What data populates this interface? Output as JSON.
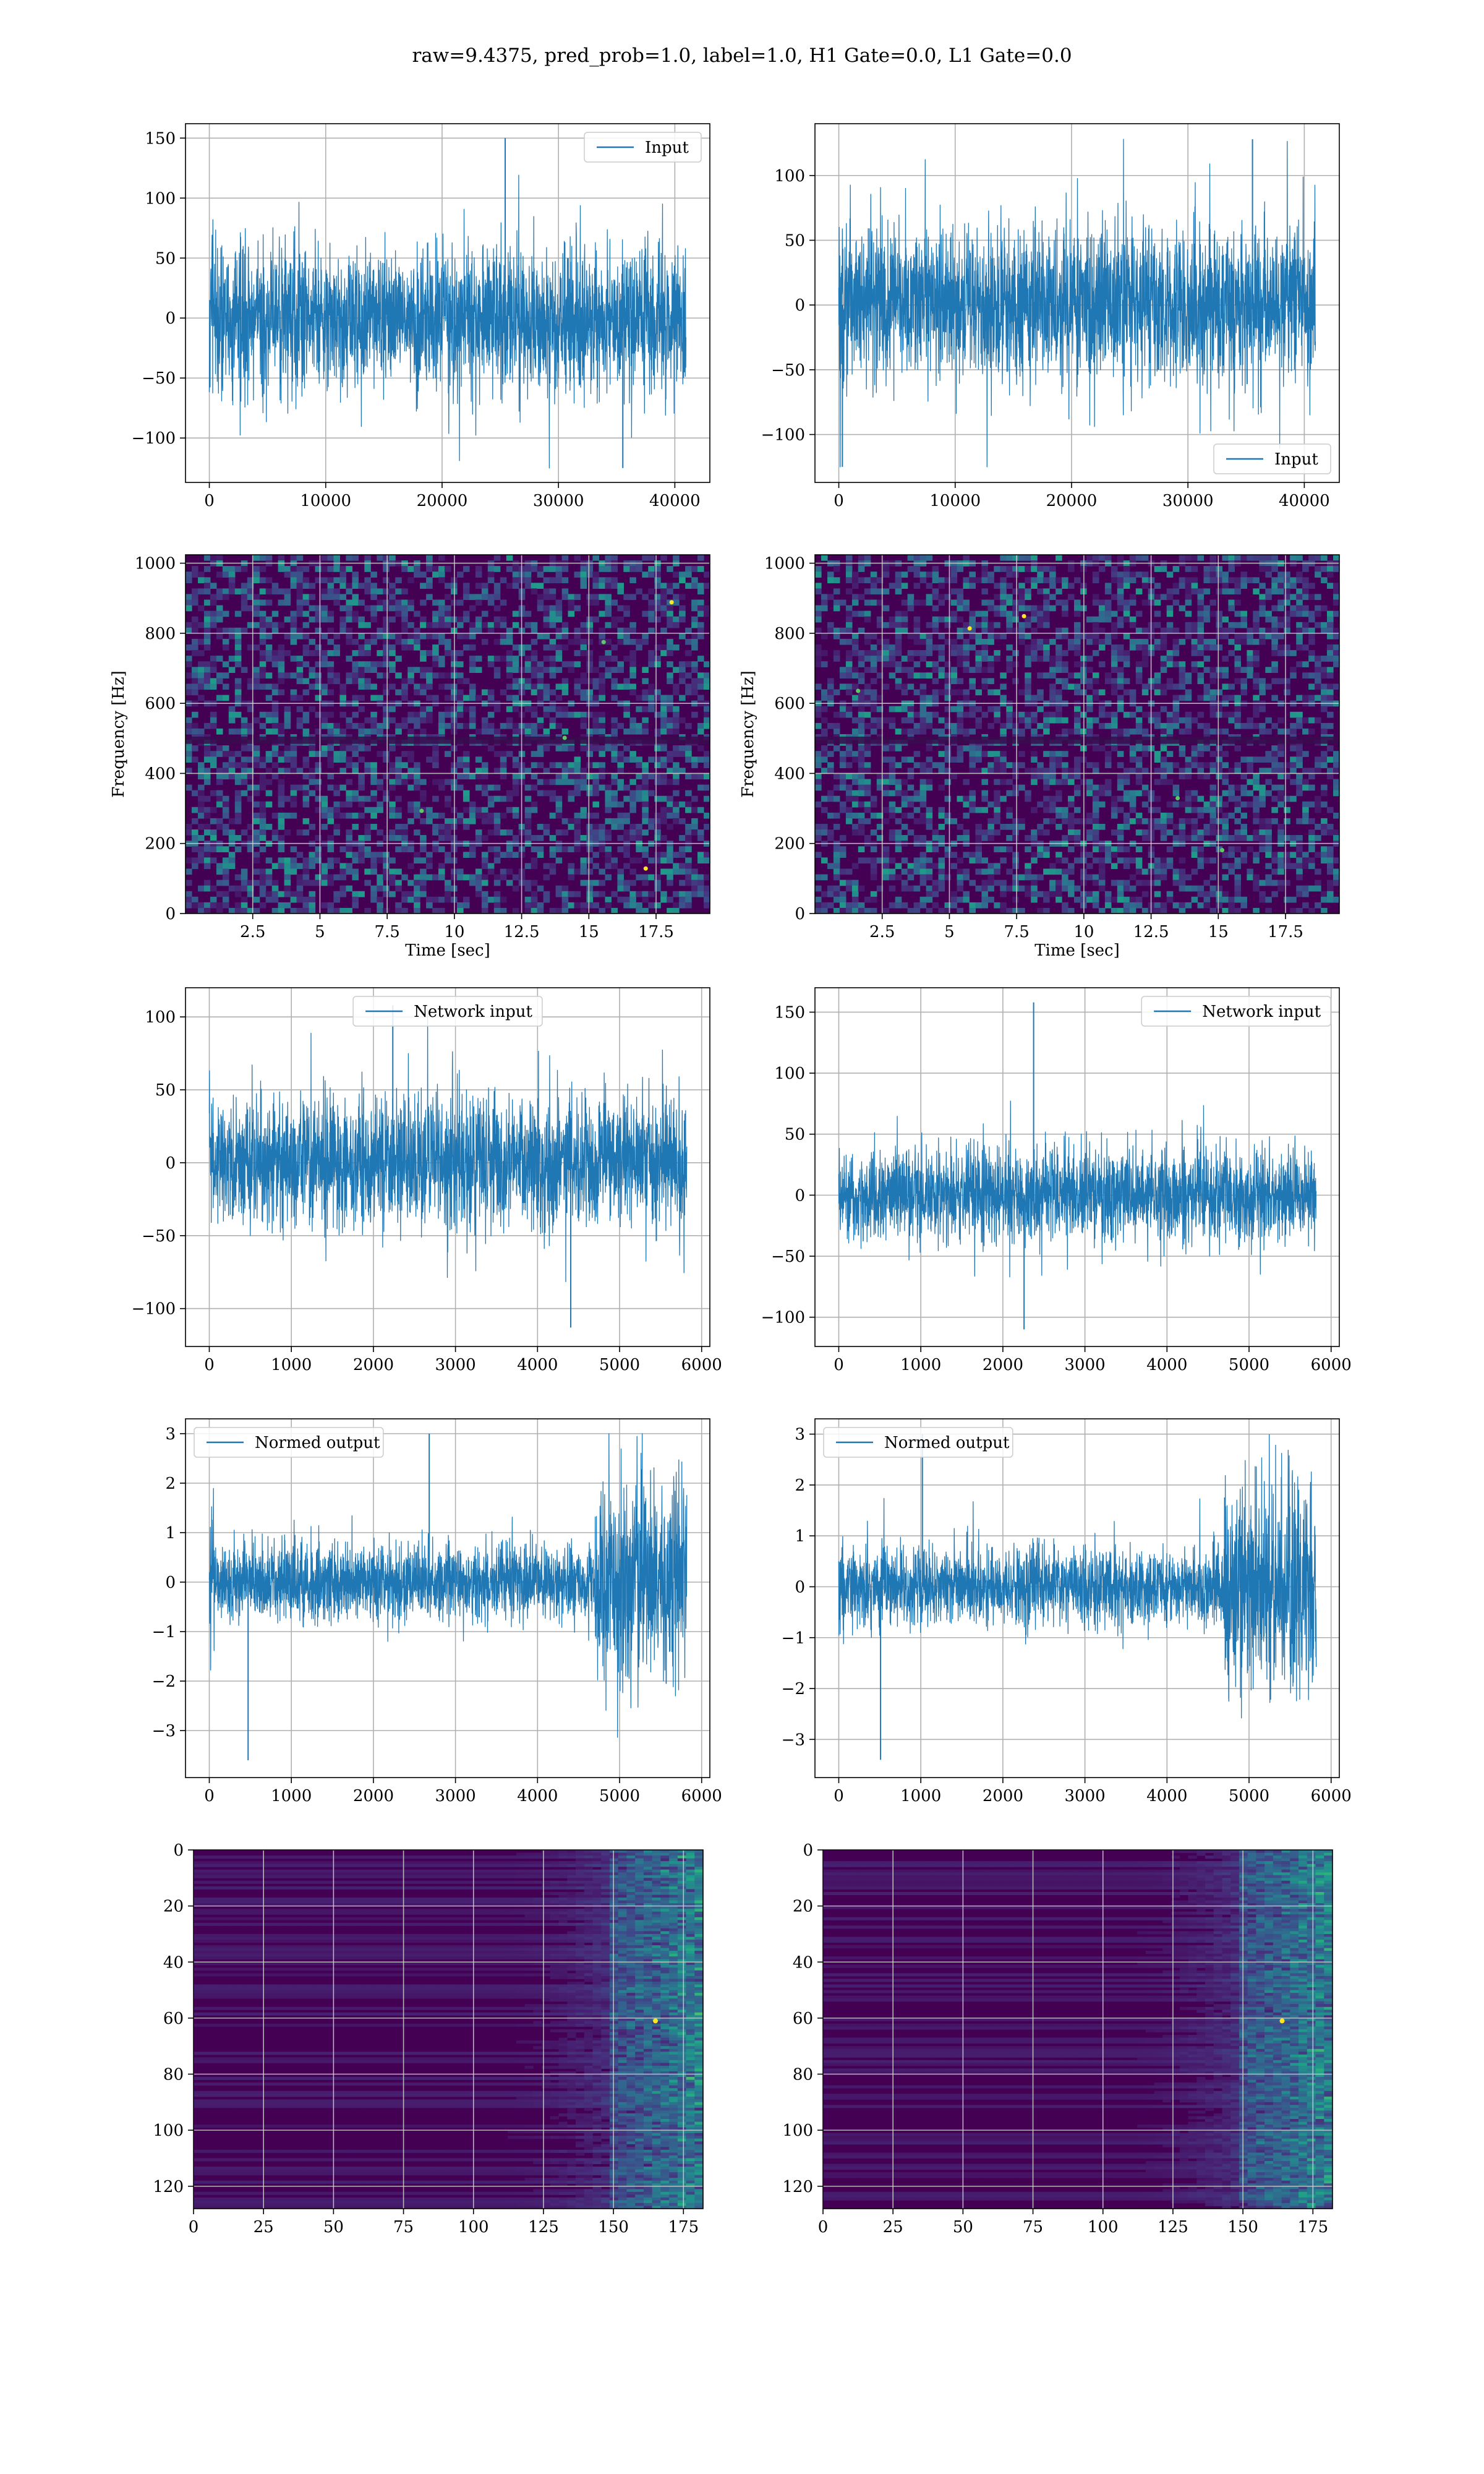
{
  "suptitle": "raw=9.4375, pred_prob=1.0, label=1.0, H1 Gate=0.0, L1 Gate=0.0",
  "colors": {
    "line": "#1f77b4",
    "grid": "#b0b0b0",
    "viridis_dark": "#440154",
    "viridis_mid": "#3b528b",
    "viridis_teal": "#21918c",
    "viridis_green": "#5ec962",
    "viridis_yellow": "#fde725"
  },
  "chart_data": [
    {
      "id": "h1-input",
      "type": "line",
      "series": [
        {
          "name": "Input",
          "n_points": 40960,
          "amplitude_range": [
            -125,
            150
          ]
        }
      ],
      "legend": "top-right",
      "xlim": [
        -2048,
        43008
      ],
      "ylim": [
        -137,
        162
      ],
      "xticks": [
        0,
        10000,
        20000,
        30000,
        40000
      ],
      "yticks": [
        -100,
        -50,
        0,
        50,
        100,
        150
      ],
      "grid": true
    },
    {
      "id": "l1-input",
      "type": "line",
      "series": [
        {
          "name": "Input",
          "n_points": 40960,
          "amplitude_range": [
            -125,
            128
          ]
        }
      ],
      "legend": "bottom-right",
      "xlim": [
        -2048,
        43008
      ],
      "ylim": [
        -137,
        140
      ],
      "xticks": [
        0,
        10000,
        20000,
        30000,
        40000
      ],
      "yticks": [
        -100,
        -50,
        0,
        50,
        100
      ],
      "grid": true
    },
    {
      "id": "h1-spectrogram",
      "type": "heatmap",
      "xlabel": "Time [sec]",
      "ylabel": "Frequency [Hz]",
      "xlim": [
        0,
        19.5
      ],
      "ylim": [
        0,
        1024
      ],
      "xticks": [
        2.5,
        5.0,
        7.5,
        10.0,
        12.5,
        15.0,
        17.5
      ],
      "yticks": [
        0,
        200,
        400,
        600,
        800,
        1000
      ],
      "colormap": "viridis",
      "grid": true
    },
    {
      "id": "l1-spectrogram",
      "type": "heatmap",
      "xlabel": "Time [sec]",
      "ylabel": "Frequency [Hz]",
      "xlim": [
        0,
        19.5
      ],
      "ylim": [
        0,
        1024
      ],
      "xticks": [
        2.5,
        5.0,
        7.5,
        10.0,
        12.5,
        15.0,
        17.5
      ],
      "yticks": [
        0,
        200,
        400,
        600,
        800,
        1000
      ],
      "colormap": "viridis",
      "grid": true
    },
    {
      "id": "h1-network-input",
      "type": "line",
      "series": [
        {
          "name": "Network input",
          "n_points": 5820,
          "amplitude_range": [
            -113,
            108
          ]
        }
      ],
      "legend": "top-center",
      "xlim": [
        -290,
        6100
      ],
      "ylim": [
        -126,
        120
      ],
      "xticks": [
        0,
        1000,
        2000,
        3000,
        4000,
        5000,
        6000
      ],
      "yticks": [
        -100,
        -50,
        0,
        50,
        100
      ],
      "grid": true
    },
    {
      "id": "l1-network-input",
      "type": "line",
      "series": [
        {
          "name": "Network input",
          "n_points": 5820,
          "amplitude_range": [
            -110,
            158
          ]
        }
      ],
      "legend": "top-right",
      "xlim": [
        -290,
        6100
      ],
      "ylim": [
        -124,
        170
      ],
      "xticks": [
        0,
        1000,
        2000,
        3000,
        4000,
        5000,
        6000
      ],
      "yticks": [
        -100,
        -50,
        0,
        50,
        100,
        150
      ],
      "grid": true
    },
    {
      "id": "h1-normed-output",
      "type": "line",
      "series": [
        {
          "name": "Normed output",
          "n_points": 5820,
          "amplitude_range": [
            -3.6,
            3.0
          ]
        }
      ],
      "legend": "top-left",
      "xlim": [
        -290,
        6100
      ],
      "ylim": [
        -3.95,
        3.3
      ],
      "xticks": [
        0,
        1000,
        2000,
        3000,
        4000,
        5000,
        6000
      ],
      "yticks": [
        -3,
        -2,
        -1,
        0,
        1,
        2,
        3
      ],
      "grid": true
    },
    {
      "id": "l1-normed-output",
      "type": "line",
      "series": [
        {
          "name": "Normed output",
          "n_points": 5820,
          "amplitude_range": [
            -3.4,
            3.0
          ]
        }
      ],
      "legend": "top-left",
      "xlim": [
        -290,
        6100
      ],
      "ylim": [
        -3.75,
        3.3
      ],
      "xticks": [
        0,
        1000,
        2000,
        3000,
        4000,
        5000,
        6000
      ],
      "yticks": [
        -3,
        -2,
        -1,
        0,
        1,
        2,
        3
      ],
      "grid": true
    },
    {
      "id": "h1-feature-map",
      "type": "heatmap",
      "rows": 128,
      "cols": 182,
      "xlim": [
        0,
        182
      ],
      "ylim": [
        128,
        0
      ],
      "xticks": [
        0,
        25,
        50,
        75,
        100,
        125,
        150,
        175
      ],
      "yticks": [
        0,
        20,
        40,
        60,
        80,
        100,
        120
      ],
      "colormap": "viridis",
      "grid": true
    },
    {
      "id": "l1-feature-map",
      "type": "heatmap",
      "rows": 128,
      "cols": 182,
      "xlim": [
        0,
        182
      ],
      "ylim": [
        128,
        0
      ],
      "xticks": [
        0,
        25,
        50,
        75,
        100,
        125,
        150,
        175
      ],
      "yticks": [
        0,
        20,
        40,
        60,
        80,
        100,
        120
      ],
      "colormap": "viridis",
      "grid": true
    }
  ]
}
